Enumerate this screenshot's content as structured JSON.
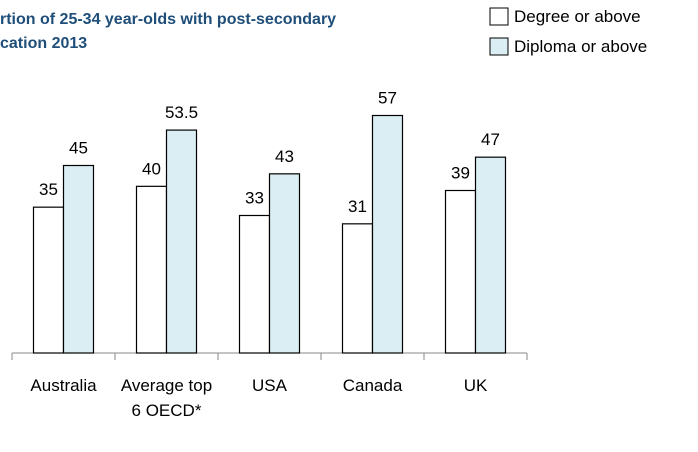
{
  "chart_data": {
    "type": "bar",
    "title": [
      "rtion of 25-34 year-olds with post-secondary",
      "cation 2013"
    ],
    "categories": [
      "Australia",
      "Average top 6 OECD*",
      "USA",
      "Canada",
      "UK"
    ],
    "series": [
      {
        "name": "Degree or above",
        "color": "#ffffff",
        "values": [
          35,
          40,
          33,
          31,
          39
        ]
      },
      {
        "name": "Diploma or above",
        "color": "#daeef3",
        "values": [
          45,
          53.5,
          43,
          57,
          47
        ]
      }
    ],
    "ylim": [
      0,
      60
    ],
    "legend": "top-right"
  }
}
